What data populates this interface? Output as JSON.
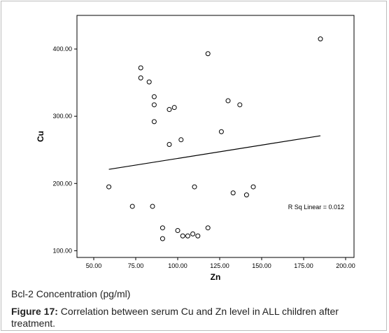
{
  "chart_data": {
    "type": "scatter",
    "xlabel": "Zn",
    "ylabel": "Cu",
    "xlim": [
      40,
      205
    ],
    "ylim": [
      90,
      450
    ],
    "x_ticks": [
      50,
      75,
      100,
      125,
      150,
      175,
      200
    ],
    "x_tick_labels": [
      "50.00",
      "75.00",
      "100.00",
      "125.00",
      "150.00",
      "175.00",
      "200.00"
    ],
    "y_ticks": [
      100,
      200,
      300,
      400
    ],
    "y_tick_labels": [
      "100.00",
      "200.00",
      "300.00",
      "400.00"
    ],
    "points": [
      {
        "x": 59,
        "y": 195
      },
      {
        "x": 73,
        "y": 166
      },
      {
        "x": 78,
        "y": 372
      },
      {
        "x": 78,
        "y": 357
      },
      {
        "x": 83,
        "y": 351
      },
      {
        "x": 85,
        "y": 166
      },
      {
        "x": 86,
        "y": 329
      },
      {
        "x": 86,
        "y": 317
      },
      {
        "x": 86,
        "y": 292
      },
      {
        "x": 91,
        "y": 134
      },
      {
        "x": 91,
        "y": 118
      },
      {
        "x": 95,
        "y": 310
      },
      {
        "x": 95,
        "y": 258
      },
      {
        "x": 98,
        "y": 313
      },
      {
        "x": 100,
        "y": 130
      },
      {
        "x": 102,
        "y": 265
      },
      {
        "x": 103,
        "y": 122
      },
      {
        "x": 106,
        "y": 122
      },
      {
        "x": 109,
        "y": 125
      },
      {
        "x": 110,
        "y": 195
      },
      {
        "x": 112,
        "y": 122
      },
      {
        "x": 118,
        "y": 393
      },
      {
        "x": 118,
        "y": 134
      },
      {
        "x": 126,
        "y": 277
      },
      {
        "x": 130,
        "y": 323
      },
      {
        "x": 133,
        "y": 186
      },
      {
        "x": 137,
        "y": 317
      },
      {
        "x": 141,
        "y": 183
      },
      {
        "x": 145,
        "y": 195
      },
      {
        "x": 185,
        "y": 415
      }
    ],
    "fit_line": {
      "x1": 59,
      "y1": 221,
      "x2": 185,
      "y2": 271
    },
    "annotation": "R Sq Linear = 0.012"
  },
  "subcaption": "Bcl-2 Concentration (pg/ml)",
  "caption": {
    "label": "Figure 17:",
    "text": " Correlation between serum Cu and Zn level in ALL children after treatment."
  }
}
